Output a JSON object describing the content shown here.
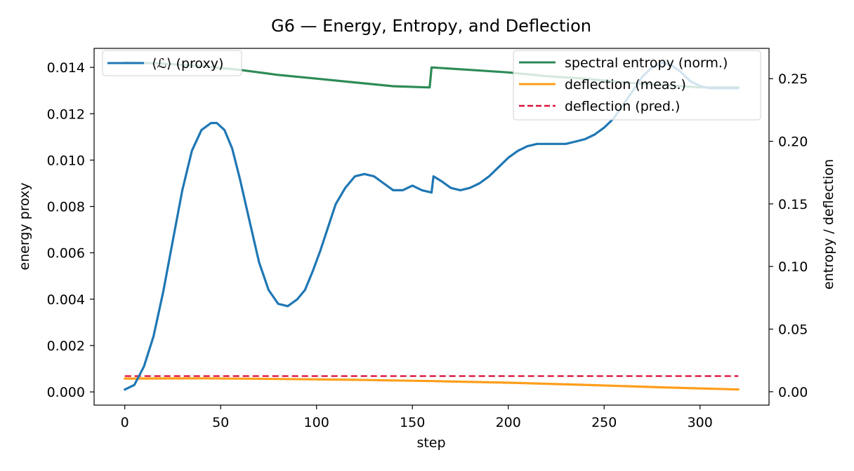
{
  "chart_data": {
    "type": "line",
    "title": "G6 — Energy, Entropy, and Deflection",
    "xlabel": "step",
    "ylabel_left": "energy proxy",
    "ylabel_right": "entropy / deflection",
    "xlim": [
      -16,
      336
    ],
    "ylim_left": [
      -0.00057,
      0.01482
    ],
    "ylim_right": [
      -0.0107,
      0.2742
    ],
    "x_ticks": [
      0,
      50,
      100,
      150,
      200,
      250,
      300
    ],
    "y_ticks_left": [
      0.0,
      0.002,
      0.004,
      0.006,
      0.008,
      0.01,
      0.012,
      0.014
    ],
    "y_tick_labels_left": [
      "0.000",
      "0.002",
      "0.004",
      "0.006",
      "0.008",
      "0.010",
      "0.012",
      "0.014"
    ],
    "y_ticks_right": [
      0.0,
      0.05,
      0.1,
      0.15,
      0.2,
      0.25
    ],
    "y_tick_labels_right": [
      "0.00",
      "0.05",
      "0.10",
      "0.15",
      "0.20",
      "0.25"
    ],
    "grid": false,
    "legend_left": {
      "placement": "top-left",
      "entries": [
        "⟨ℒ⟩ (proxy)"
      ]
    },
    "legend_right": {
      "placement": "top-right",
      "entries": [
        "spectral entropy (norm.)",
        "deflection (meas.)",
        "deflection (pred.)"
      ]
    },
    "series": [
      {
        "name": "⟨ℒ⟩ (proxy)",
        "axis": "left",
        "color": "#1f77b4",
        "style": "solid",
        "x": [
          0,
          5,
          10,
          15,
          20,
          25,
          30,
          35,
          40,
          45,
          48,
          52,
          56,
          60,
          65,
          70,
          75,
          80,
          85,
          90,
          94,
          98,
          102,
          106,
          110,
          115,
          120,
          125,
          130,
          135,
          140,
          145,
          150,
          155,
          160,
          161,
          165,
          170,
          175,
          180,
          185,
          190,
          195,
          200,
          205,
          210,
          215,
          220,
          225,
          230,
          235,
          240,
          245,
          250,
          255,
          260,
          265,
          270,
          275,
          280,
          285,
          290,
          295,
          300,
          305,
          310,
          315,
          320
        ],
        "y": [
          0.0001,
          0.0003,
          0.0011,
          0.0024,
          0.0043,
          0.0065,
          0.0087,
          0.0104,
          0.0113,
          0.0116,
          0.0116,
          0.0113,
          0.0105,
          0.0092,
          0.0074,
          0.0056,
          0.0044,
          0.0038,
          0.0037,
          0.004,
          0.0044,
          0.0052,
          0.0061,
          0.0071,
          0.0081,
          0.0088,
          0.0093,
          0.0094,
          0.0093,
          0.009,
          0.0087,
          0.0087,
          0.0089,
          0.0087,
          0.0086,
          0.0093,
          0.0091,
          0.0088,
          0.0087,
          0.0088,
          0.009,
          0.0093,
          0.0097,
          0.0101,
          0.0104,
          0.0106,
          0.0107,
          0.0107,
          0.0107,
          0.0107,
          0.0108,
          0.0109,
          0.0111,
          0.0114,
          0.0118,
          0.0124,
          0.013,
          0.0136,
          0.014,
          0.0142,
          0.0141,
          0.0138,
          0.0134,
          0.0132,
          0.0131,
          0.0131,
          0.0131,
          0.0131
        ]
      },
      {
        "name": "spectral entropy (norm.)",
        "axis": "right",
        "color": "#2e8b57",
        "style": "solid",
        "x": [
          0,
          20,
          40,
          60,
          80,
          100,
          120,
          140,
          158,
          159,
          160,
          180,
          200,
          220,
          240,
          260,
          280,
          300,
          320
        ],
        "y": [
          0.263,
          0.262,
          0.26,
          0.257,
          0.253,
          0.25,
          0.247,
          0.244,
          0.243,
          0.243,
          0.259,
          0.257,
          0.255,
          0.252,
          0.25,
          0.247,
          0.245,
          0.243,
          0.243
        ]
      },
      {
        "name": "deflection (meas.)",
        "axis": "right",
        "color": "#ff9e1b",
        "style": "solid",
        "x": [
          0,
          40,
          80,
          120,
          160,
          200,
          240,
          280,
          320
        ],
        "y": [
          0.0105,
          0.0107,
          0.0102,
          0.0095,
          0.0085,
          0.0072,
          0.0055,
          0.0035,
          0.0018
        ]
      },
      {
        "name": "deflection (pred.)",
        "axis": "right",
        "color": "#dc143c",
        "style": "dashed",
        "x": [
          0,
          320
        ],
        "y": [
          0.0125,
          0.0125
        ]
      }
    ]
  }
}
